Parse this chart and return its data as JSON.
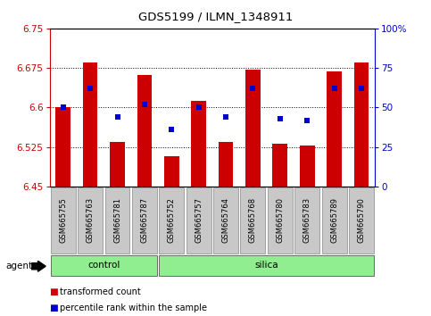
{
  "title": "GDS5199 / ILMN_1348911",
  "samples": [
    "GSM665755",
    "GSM665763",
    "GSM665781",
    "GSM665787",
    "GSM665752",
    "GSM665757",
    "GSM665764",
    "GSM665768",
    "GSM665780",
    "GSM665783",
    "GSM665789",
    "GSM665790"
  ],
  "groups": [
    "control",
    "control",
    "control",
    "control",
    "silica",
    "silica",
    "silica",
    "silica",
    "silica",
    "silica",
    "silica",
    "silica"
  ],
  "bar_values": [
    6.601,
    6.686,
    6.535,
    6.662,
    6.507,
    6.612,
    6.535,
    6.671,
    6.531,
    6.528,
    6.668,
    6.686
  ],
  "percentile_values": [
    50,
    62,
    44,
    52,
    36,
    50,
    44,
    62,
    43,
    42,
    62,
    62
  ],
  "y_min": 6.45,
  "y_max": 6.75,
  "y_ticks": [
    6.45,
    6.525,
    6.6,
    6.675,
    6.75
  ],
  "y_tick_labels": [
    "6.45",
    "6.525",
    "6.6",
    "6.675",
    "6.75"
  ],
  "right_y_ticks": [
    0,
    25,
    50,
    75,
    100
  ],
  "right_y_tick_labels": [
    "0",
    "25",
    "50",
    "75",
    "100%"
  ],
  "bar_color": "#cc0000",
  "marker_color": "#0000cc",
  "bar_bottom": 6.45,
  "control_color": "#90ee90",
  "silica_color": "#90ee90",
  "bg_color": "#ffffff",
  "tick_bg_color": "#c8c8c8",
  "dotted_line_color": "#000000",
  "left_axis_color": "#cc0000",
  "right_axis_color": "#0000cc",
  "bar_width": 0.55,
  "marker_size": 5,
  "n_control": 4,
  "n_silica": 8
}
